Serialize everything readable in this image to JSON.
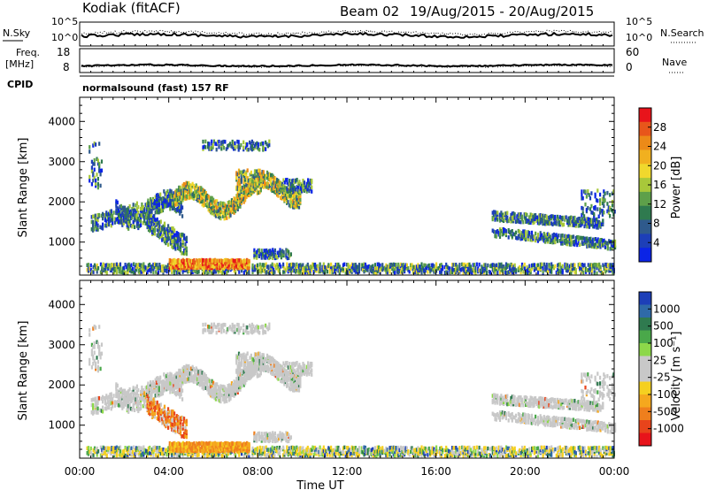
{
  "header": {
    "site": "Kodiak (fitACF)",
    "beam": "Beam 02",
    "dates": "19/Aug/2015 - 20/Aug/2015"
  },
  "summary": {
    "nsky_label": "N.Sky",
    "nsearch_label": "N.Search",
    "noise_ticks_left": [
      "10^5",
      "10^0"
    ],
    "noise_ticks_right": [
      "10^5",
      "10^0"
    ],
    "freq_label_1": "Freq.",
    "freq_label_2": "[MHz]",
    "freq_ticks": [
      "18",
      "8"
    ],
    "nave_label": "Nave",
    "nave_ticks": [
      "60",
      "0"
    ],
    "cpid_label": "CPID",
    "cpid_value": "normalsound (fast) 157 RF"
  },
  "chart_data": [
    {
      "type": "heatmap",
      "name": "power",
      "ylabel": "Slant Range [km]",
      "ylim": [
        180,
        4600
      ],
      "yticks": [
        1000,
        2000,
        3000,
        4000
      ],
      "xlabel": "",
      "colorbar_label": "Power [dB]",
      "colorbar_ticks": [
        "28",
        "24",
        "20",
        "16",
        "12",
        "8",
        "4"
      ],
      "colorbar_colors": [
        "#e8141b",
        "#e8561b",
        "#ec8a18",
        "#f1b01f",
        "#f0d82d",
        "#a8c83a",
        "#5ea04a",
        "#2f7a4f",
        "#2f5a8c",
        "#1d3fb8",
        "#0b24e6"
      ]
    },
    {
      "type": "heatmap",
      "name": "velocity",
      "ylabel": "Slant Range [km]",
      "ylim": [
        180,
        4600
      ],
      "yticks": [
        1000,
        2000,
        3000,
        4000
      ],
      "xlabel": "Time UT",
      "xticks": [
        "00:00",
        "04:00",
        "08:00",
        "12:00",
        "16:00",
        "20:00",
        "00:00"
      ],
      "colorbar_label": "Velocity [m s⁻¹]",
      "colorbar_ticks": [
        "1000",
        "500",
        "100",
        "25",
        "-25",
        "-100",
        "-500",
        "-1000"
      ],
      "colorbar_colors": [
        "#1d3fb8",
        "#2f6aa8",
        "#2f7a4f",
        "#4aa84a",
        "#8dd84a",
        "#c8c8c8",
        "#c8c8c8",
        "#f5d020",
        "#f5a81e",
        "#ef7f1d",
        "#e8441b",
        "#e8141b"
      ]
    }
  ]
}
